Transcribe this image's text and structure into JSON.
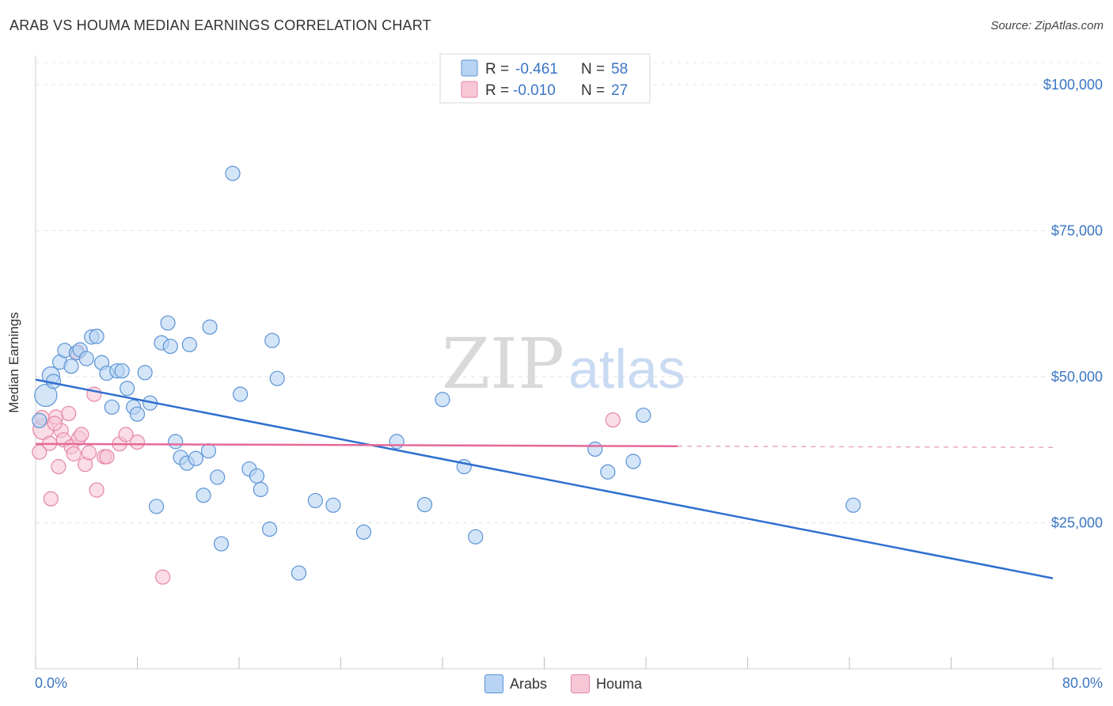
{
  "title": "ARAB VS HOUMA MEDIAN EARNINGS CORRELATION CHART",
  "source": "Source: ZipAtlas.com",
  "watermark": {
    "zip": "ZIP",
    "atlas": "atlas"
  },
  "colors": {
    "arabs_fill": "#b8d3f3",
    "arabs_stroke": "#5b93d6",
    "arabs_line": "#2f6fd0",
    "houma_fill": "#f7c7d6",
    "houma_stroke": "#e585a6",
    "houma_line": "#e4699a",
    "axis_label": "#3b76c4",
    "grid": "#e3e3e3"
  },
  "legend_top": [
    {
      "r_label": "R = ",
      "r_value": "-0.461",
      "n_label": "N = ",
      "n_value": "58",
      "series": "Arabs"
    },
    {
      "r_label": "R = ",
      "r_value": "-0.010",
      "n_label": "N = ",
      "n_value": "27",
      "series": "Houma"
    }
  ],
  "legend_bottom": [
    "Arabs",
    "Houma"
  ],
  "chart_data": {
    "type": "scatter",
    "title": "ARAB VS HOUMA MEDIAN EARNINGS CORRELATION CHART",
    "xlabel": "",
    "ylabel": "Median Earnings",
    "xlim": [
      0,
      80
    ],
    "ylim": [
      0,
      105000
    ],
    "x_tick_labels": [
      "0.0%",
      "80.0%"
    ],
    "y_ticks": [
      25000,
      50000,
      75000,
      100000
    ],
    "y_tick_labels": [
      "$25,000",
      "$50,000",
      "$75,000",
      "$100,000"
    ],
    "grid": true,
    "series": [
      {
        "name": "Arabs",
        "r": -0.461,
        "n": 58,
        "trend": {
          "x0": 0,
          "y0": 49500,
          "x1": 80,
          "y1": 15500
        },
        "points": [
          [
            0.8,
            46800,
            14
          ],
          [
            1.2,
            50200,
            11
          ],
          [
            1.4,
            49200,
            9
          ],
          [
            1.9,
            52500,
            9
          ],
          [
            2.3,
            54500,
            9
          ],
          [
            2.8,
            51800,
            9
          ],
          [
            3.2,
            54100,
            9
          ],
          [
            3.5,
            54600,
            9
          ],
          [
            4.0,
            53100,
            9
          ],
          [
            4.4,
            56800,
            9
          ],
          [
            4.8,
            56900,
            9
          ],
          [
            5.2,
            52400,
            9
          ],
          [
            5.6,
            50600,
            9
          ],
          [
            6.0,
            44800,
            9
          ],
          [
            6.4,
            51000,
            9
          ],
          [
            6.8,
            51000,
            9
          ],
          [
            7.2,
            48000,
            9
          ],
          [
            7.7,
            44800,
            9
          ],
          [
            8.0,
            43600,
            9
          ],
          [
            8.6,
            50700,
            9
          ],
          [
            9.0,
            45500,
            9
          ],
          [
            9.5,
            27800,
            9
          ],
          [
            9.9,
            55800,
            9
          ],
          [
            10.4,
            59200,
            9
          ],
          [
            10.6,
            55200,
            9
          ],
          [
            11.0,
            38900,
            9
          ],
          [
            11.4,
            36200,
            9
          ],
          [
            11.9,
            35200,
            9
          ],
          [
            12.1,
            55500,
            9
          ],
          [
            12.6,
            36000,
            9
          ],
          [
            13.2,
            29700,
            9
          ],
          [
            13.6,
            37300,
            9
          ],
          [
            13.7,
            58500,
            9
          ],
          [
            14.3,
            32800,
            9
          ],
          [
            14.6,
            21400,
            9
          ],
          [
            15.5,
            84800,
            9
          ],
          [
            16.1,
            47000,
            9
          ],
          [
            16.8,
            34200,
            9
          ],
          [
            17.4,
            33000,
            9
          ],
          [
            17.7,
            30700,
            9
          ],
          [
            18.4,
            23900,
            9
          ],
          [
            18.6,
            56200,
            9
          ],
          [
            19.0,
            49700,
            9
          ],
          [
            20.7,
            16400,
            9
          ],
          [
            22.0,
            28800,
            9
          ],
          [
            23.4,
            28000,
            9
          ],
          [
            25.8,
            23400,
            9
          ],
          [
            28.4,
            38900,
            9
          ],
          [
            30.6,
            28100,
            9
          ],
          [
            32.0,
            46100,
            9
          ],
          [
            33.7,
            34600,
            9
          ],
          [
            34.6,
            22600,
            9
          ],
          [
            44.0,
            37600,
            9
          ],
          [
            45.0,
            33700,
            9
          ],
          [
            47.0,
            35500,
            9
          ],
          [
            47.8,
            43400,
            9
          ],
          [
            64.3,
            28000,
            9
          ],
          [
            0.3,
            42500,
            9
          ]
        ]
      },
      {
        "name": "Houma",
        "r": -0.01,
        "n": 27,
        "trend": {
          "x0": 0,
          "y0": 38500,
          "x1": 50.5,
          "y1": 38100,
          "dash_x1": 80,
          "dash_y1": 37900
        },
        "points": [
          [
            0.6,
            41000,
            13
          ],
          [
            0.3,
            37100,
            9
          ],
          [
            0.5,
            43000,
            9
          ],
          [
            1.1,
            38600,
            9
          ],
          [
            1.6,
            43100,
            9
          ],
          [
            1.8,
            34600,
            9
          ],
          [
            1.2,
            29100,
            9
          ],
          [
            2.0,
            40800,
            9
          ],
          [
            2.2,
            39200,
            9
          ],
          [
            2.6,
            43700,
            9
          ],
          [
            2.8,
            38000,
            9
          ],
          [
            3.0,
            36800,
            9
          ],
          [
            3.4,
            39500,
            9
          ],
          [
            3.6,
            40100,
            9
          ],
          [
            3.9,
            35000,
            9
          ],
          [
            4.2,
            37000,
            9
          ],
          [
            4.6,
            47000,
            9
          ],
          [
            4.8,
            30600,
            9
          ],
          [
            5.4,
            36300,
            9
          ],
          [
            5.6,
            36300,
            9
          ],
          [
            6.6,
            38500,
            9
          ],
          [
            7.1,
            40100,
            9
          ],
          [
            8.0,
            38800,
            9
          ],
          [
            10.0,
            15700,
            9
          ],
          [
            45.4,
            42600,
            9
          ],
          [
            1.5,
            42000,
            9
          ],
          [
            3.3,
            54200,
            9
          ]
        ]
      }
    ]
  }
}
